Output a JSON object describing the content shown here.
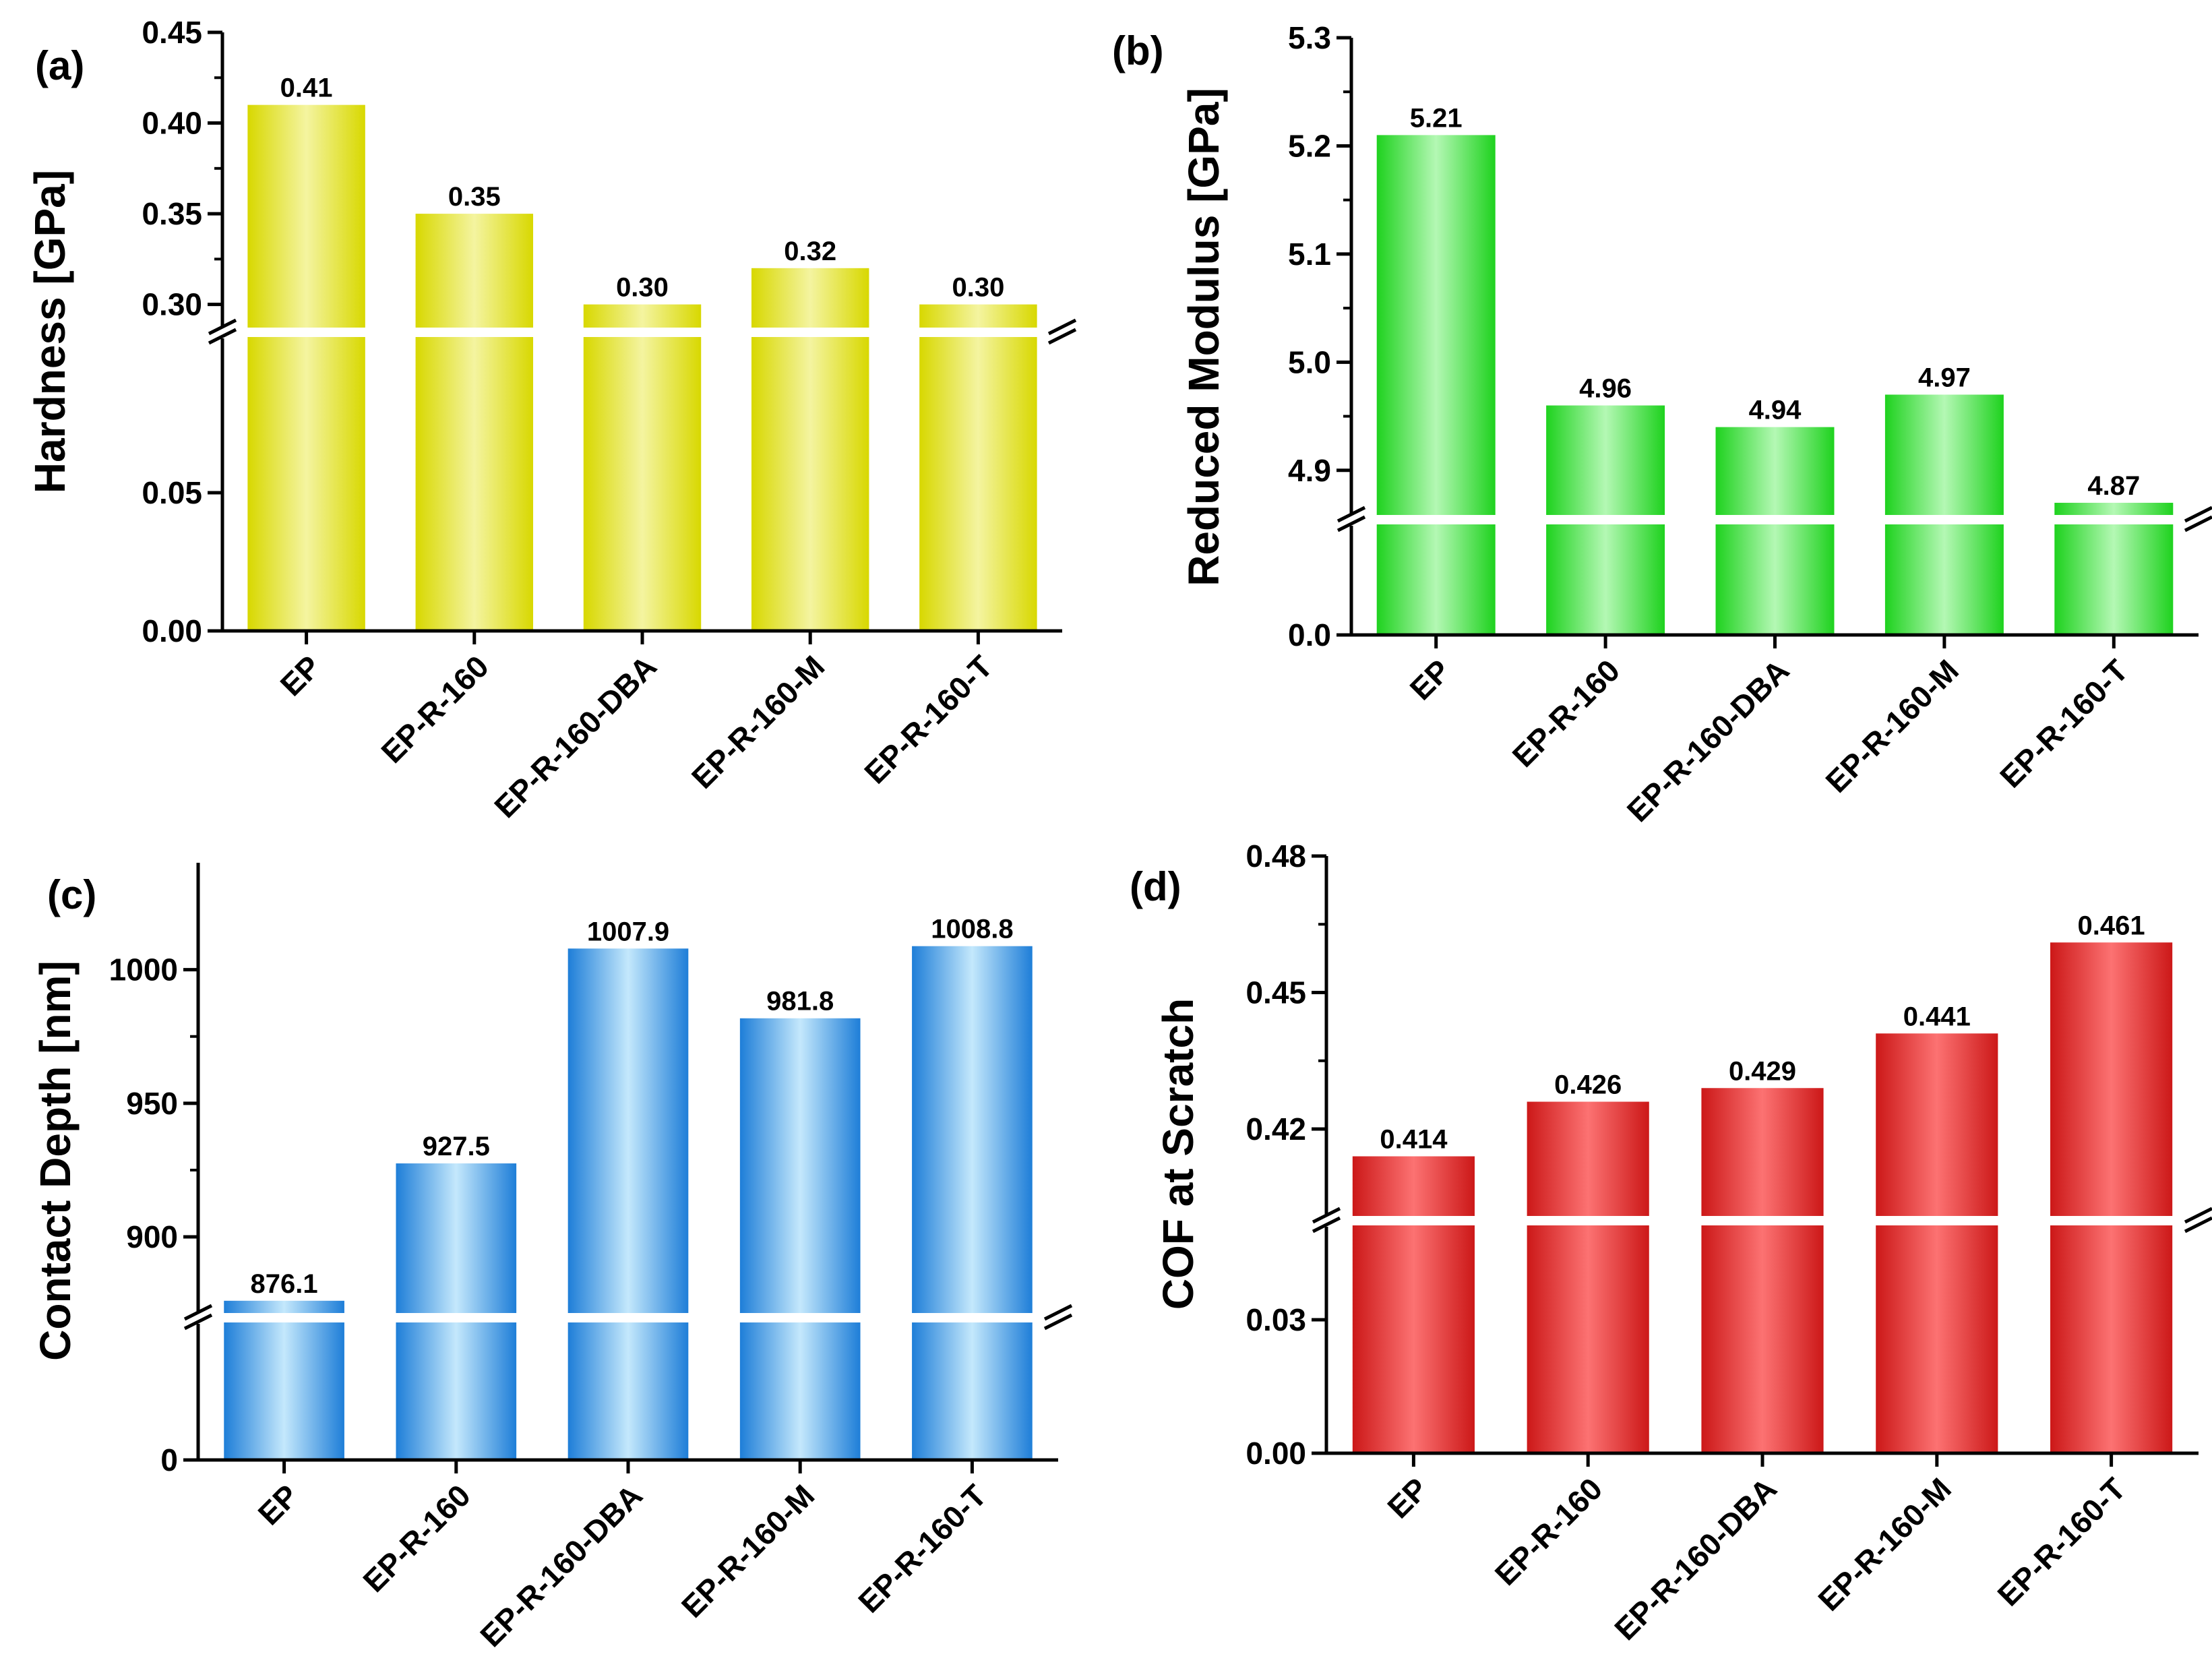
{
  "chart_data": [
    {
      "id": "a",
      "panel_label": "(a)",
      "type": "bar",
      "title": "",
      "xlabel": "",
      "ylabel": "Hardness [GPa]",
      "categories": [
        "EP",
        "EP-R-160",
        "EP-R-160-DBA",
        "EP-R-160-M",
        "EP-R-160-T"
      ],
      "values": [
        0.41,
        0.35,
        0.3,
        0.32,
        0.3
      ],
      "value_labels": [
        "0.41",
        "0.35",
        "0.30",
        "0.32",
        "0.30"
      ],
      "axis_break": [
        0.1,
        0.285
      ],
      "lower_ticks": [
        0.0,
        0.05
      ],
      "upper_ticks": [
        0.3,
        0.35,
        0.4,
        0.45
      ],
      "lower_tick_labels": [
        "0.00",
        "0.05"
      ],
      "upper_tick_labels": [
        "0.30",
        "0.35",
        "0.40",
        "0.45"
      ],
      "lower_range": [
        0.0,
        0.1
      ],
      "upper_range": [
        0.285,
        0.45
      ],
      "colors": {
        "edge": "#d8d800",
        "center": "#f4f4a0"
      }
    },
    {
      "id": "b",
      "panel_label": "(b)",
      "type": "bar",
      "title": "",
      "xlabel": "",
      "ylabel": "Reduced Modulus [GPa]",
      "categories": [
        "EP",
        "EP-R-160",
        "EP-R-160-DBA",
        "EP-R-160-M",
        "EP-R-160-T"
      ],
      "values": [
        5.21,
        4.96,
        4.94,
        4.97,
        4.87
      ],
      "value_labels": [
        "5.21",
        "4.96",
        "4.94",
        "4.97",
        "4.87"
      ],
      "axis_break": [
        1.0,
        4.855
      ],
      "lower_ticks": [
        0.0
      ],
      "upper_ticks": [
        4.9,
        5.0,
        5.1,
        5.2,
        5.3
      ],
      "lower_tick_labels": [
        "0.0"
      ],
      "upper_tick_labels": [
        "4.9",
        "5.0",
        "5.1",
        "5.2",
        "5.3"
      ],
      "lower_range": [
        0.0,
        1.0
      ],
      "upper_range": [
        4.855,
        5.3
      ],
      "colors": {
        "edge": "#1ed21e",
        "center": "#b4f8b4"
      }
    },
    {
      "id": "c",
      "panel_label": "(c)",
      "type": "bar",
      "title": "",
      "xlabel": "",
      "ylabel": "Contact Depth [nm]",
      "categories": [
        "EP",
        "EP-R-160",
        "EP-R-160-DBA",
        "EP-R-160-M",
        "EP-R-160-T"
      ],
      "values": [
        876.1,
        927.5,
        1007.9,
        981.8,
        1008.8
      ],
      "value_labels": [
        "876.1",
        "927.5",
        "1007.9",
        "981.8",
        "1008.8"
      ],
      "axis_break": [
        200,
        870
      ],
      "lower_ticks": [
        0
      ],
      "upper_ticks": [
        900,
        950,
        1000
      ],
      "lower_tick_labels": [
        "0"
      ],
      "upper_tick_labels": [
        "900",
        "950",
        "1000"
      ],
      "lower_range": [
        0,
        200
      ],
      "upper_range": [
        870,
        1040
      ],
      "colors": {
        "edge": "#1e7ed8",
        "center": "#c4e8fc"
      }
    },
    {
      "id": "d",
      "panel_label": "(d)",
      "type": "bar",
      "title": "",
      "xlabel": "",
      "ylabel": "COF at Scratch",
      "categories": [
        "EP",
        "EP-R-160",
        "EP-R-160-DBA",
        "EP-R-160-M",
        "EP-R-160-T"
      ],
      "values": [
        0.414,
        0.426,
        0.429,
        0.441,
        0.461
      ],
      "value_labels": [
        "0.414",
        "0.426",
        "0.429",
        "0.441",
        "0.461"
      ],
      "axis_break": [
        0.05,
        0.4
      ],
      "lower_ticks": [
        0.0,
        0.03
      ],
      "upper_ticks": [
        0.42,
        0.45,
        0.48
      ],
      "lower_tick_labels": [
        "0.00",
        "0.03"
      ],
      "upper_tick_labels": [
        "0.42",
        "0.45",
        "0.48"
      ],
      "lower_range": [
        0.0,
        0.05
      ],
      "upper_range": [
        0.4,
        0.48
      ],
      "colors": {
        "edge": "#cc1818",
        "center": "#fc7272"
      }
    }
  ]
}
